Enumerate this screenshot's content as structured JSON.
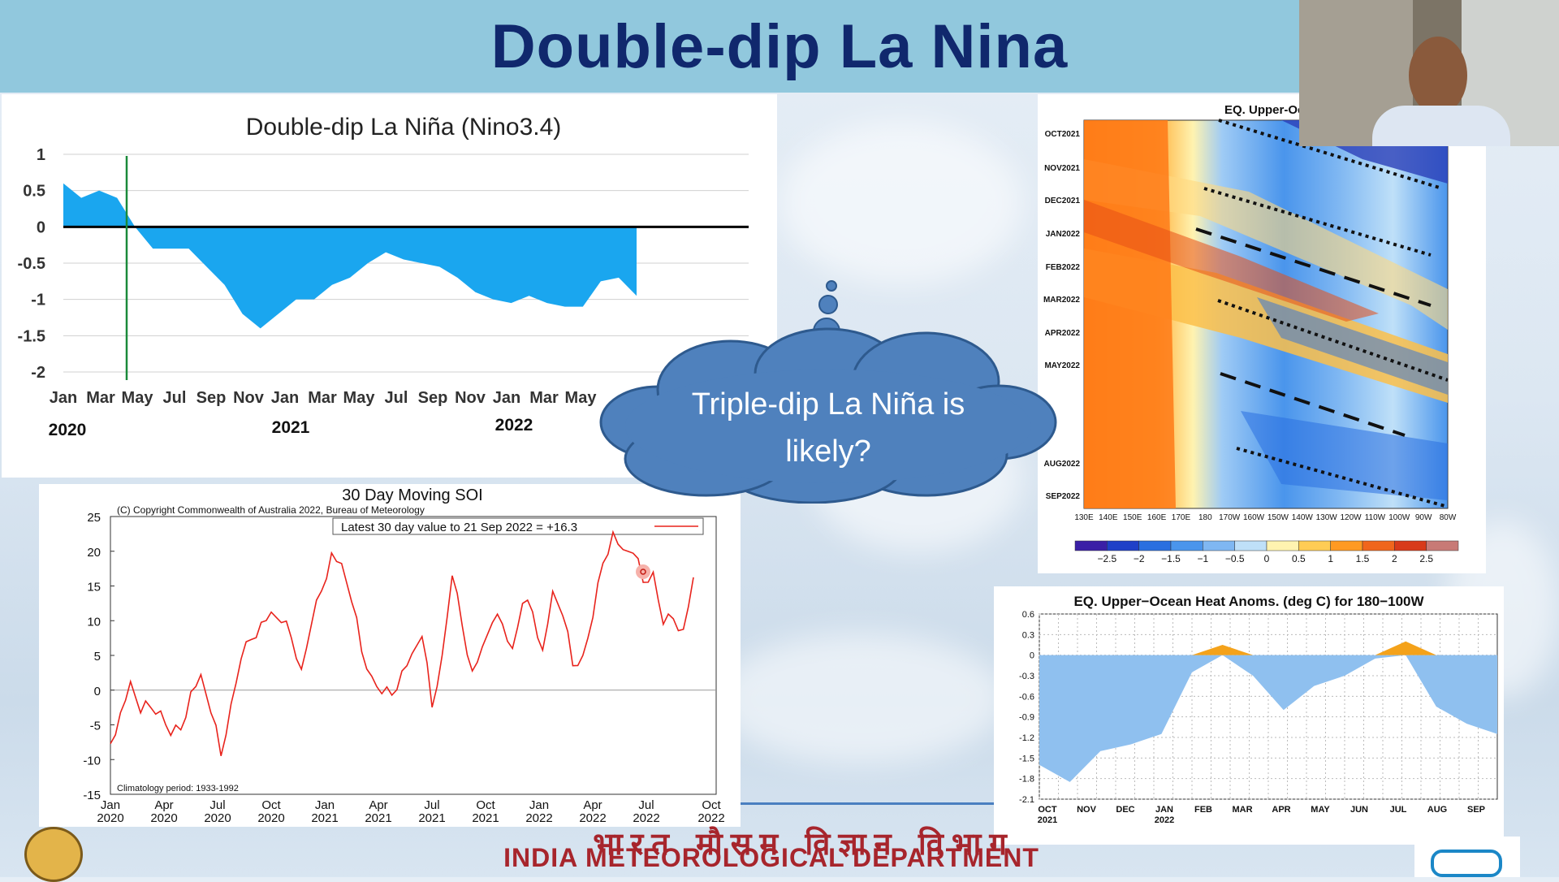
{
  "slide": {
    "title": "Double-dip La Nina",
    "footer_hindi": "भारत मौसम विज्ञान विभाग",
    "footer_english": "INDIA METEOROLOGICAL DEPARTMENT",
    "callout_text_line1": "Triple-dip La Niña is",
    "callout_text_line2": "likely?",
    "colors": {
      "title": "#10286d",
      "title_bar": "#91c8dd",
      "callout_fill": "#4f81bd",
      "footer": "#a7252c"
    }
  },
  "chart_data": [
    {
      "type": "area",
      "title": "Double-dip La Niña (Nino3.4)",
      "x_tick_labels": [
        "Jan",
        "Mar",
        "May",
        "Jul",
        "Sep",
        "Nov",
        "Jan",
        "Mar",
        "May",
        "Jul",
        "Sep",
        "Nov",
        "Jan",
        "Mar",
        "May"
      ],
      "year_labels": [
        "2020",
        "2021",
        "2022"
      ],
      "ylim": [
        -2,
        1
      ],
      "yticks": [
        "1",
        "0.5",
        "0",
        "-0.5",
        "-1",
        "-1.5",
        "-2"
      ],
      "values": [
        0.6,
        0.4,
        0.5,
        0.4,
        0.0,
        -0.3,
        -0.3,
        -0.3,
        -0.55,
        -0.8,
        -1.2,
        -1.4,
        -1.2,
        -1.0,
        -1.0,
        -0.8,
        -0.7,
        -0.5,
        -0.35,
        -0.45,
        -0.5,
        -0.55,
        -0.7,
        -0.9,
        -1.0,
        -1.05,
        -0.95,
        -1.05,
        -1.1,
        -1.1,
        -0.75,
        -0.7,
        -0.95
      ],
      "colors": {
        "fill": "#1aa6ef",
        "zero_line": "#000000",
        "marker_line": "#1a8a3a"
      }
    },
    {
      "type": "line",
      "title": "30 Day Moving SOI",
      "copyright": "(C) Copyright Commonwealth of Australia 2022, Bureau of Meteorology",
      "legend": "Latest 30 day value to 21 Sep 2022 = +16.3",
      "footnote": "Climatology period: 1933-1992",
      "ylim": [
        -15,
        25
      ],
      "yticks": [
        "25",
        "20",
        "15",
        "10",
        "5",
        "0",
        "-5",
        "-10",
        "-15"
      ],
      "x_tick_labels": [
        "Jan",
        "Apr",
        "Jul",
        "Oct",
        "Jan",
        "Apr",
        "Jul",
        "Oct",
        "Jan",
        "Apr",
        "Jul",
        "Oct"
      ],
      "x_tick_years": [
        "2020",
        "2020",
        "2020",
        "2020",
        "2021",
        "2021",
        "2021",
        "2021",
        "2022",
        "2022",
        "2022",
        "2022"
      ],
      "values": [
        -7,
        -3,
        1,
        -4,
        -2,
        -3,
        -7,
        -5,
        0,
        2,
        -4,
        -9,
        -2,
        4,
        8,
        10,
        11,
        9,
        8,
        3,
        9,
        15,
        20,
        18,
        12,
        6,
        2,
        -1,
        0,
        3,
        5,
        7,
        -2,
        5,
        16,
        10,
        3,
        6,
        9,
        10,
        6,
        12,
        12,
        6,
        14,
        10,
        4,
        5,
        10,
        19,
        23,
        20,
        19,
        16,
        17,
        9,
        11,
        9,
        16
      ],
      "colors": {
        "line": "#e8231c"
      }
    },
    {
      "type": "heatmap",
      "title": "EQ. Upper-Ocean Heat A",
      "y_labels": [
        "OCT2021",
        "NOV2021",
        "DEC2021",
        "JAN2022",
        "FEB2022",
        "MAR2022",
        "APR2022",
        "MAY2022",
        "AUG2022",
        "SEP2022"
      ],
      "x_labels": [
        "130E",
        "140E",
        "150E",
        "160E",
        "170E",
        "180",
        "170W",
        "160W",
        "150W",
        "140W",
        "130W",
        "120W",
        "110W",
        "100W",
        "90W",
        "80W"
      ],
      "colorbar_labels": [
        "−2.5",
        "−2",
        "−1.5",
        "−1",
        "−0.5",
        "0",
        "0.5",
        "1",
        "1.5",
        "2",
        "2.5"
      ],
      "colorbar_colors": [
        "#3a1fa6",
        "#1f40c8",
        "#2a6fe0",
        "#4a95ec",
        "#7fb7f2",
        "#bfe0f8",
        "#fff3b0",
        "#ffcc55",
        "#ff9a22",
        "#f0661c",
        "#d83a1a",
        "#c87a76"
      ]
    },
    {
      "type": "area",
      "title": "EQ. Upper−Ocean Heat Anoms. (deg C) for 180−100W",
      "x_tick_labels": [
        "OCT",
        "NOV",
        "DEC",
        "JAN",
        "FEB",
        "MAR",
        "APR",
        "MAY",
        "JUN",
        "JUL",
        "AUG",
        "SEP"
      ],
      "x_tick_years": [
        "2021",
        "",
        "",
        "2022",
        "",
        "",
        "",
        "",
        "",
        "",
        "",
        ""
      ],
      "ylim": [
        -2.1,
        0.6
      ],
      "yticks": [
        "0.6",
        "0.3",
        "0",
        "-0.3",
        "-0.6",
        "-0.9",
        "-1.2",
        "-1.5",
        "-1.8",
        "-2.1"
      ],
      "values": [
        -1.6,
        -1.85,
        -1.4,
        -1.3,
        -1.15,
        -0.25,
        0.15,
        -0.3,
        -0.8,
        -0.45,
        -0.3,
        -0.05,
        0.2,
        -0.75,
        -1.0,
        -1.15
      ],
      "colors": {
        "positive": "#f4a21a",
        "negative": "#8fc0ef"
      }
    }
  ]
}
